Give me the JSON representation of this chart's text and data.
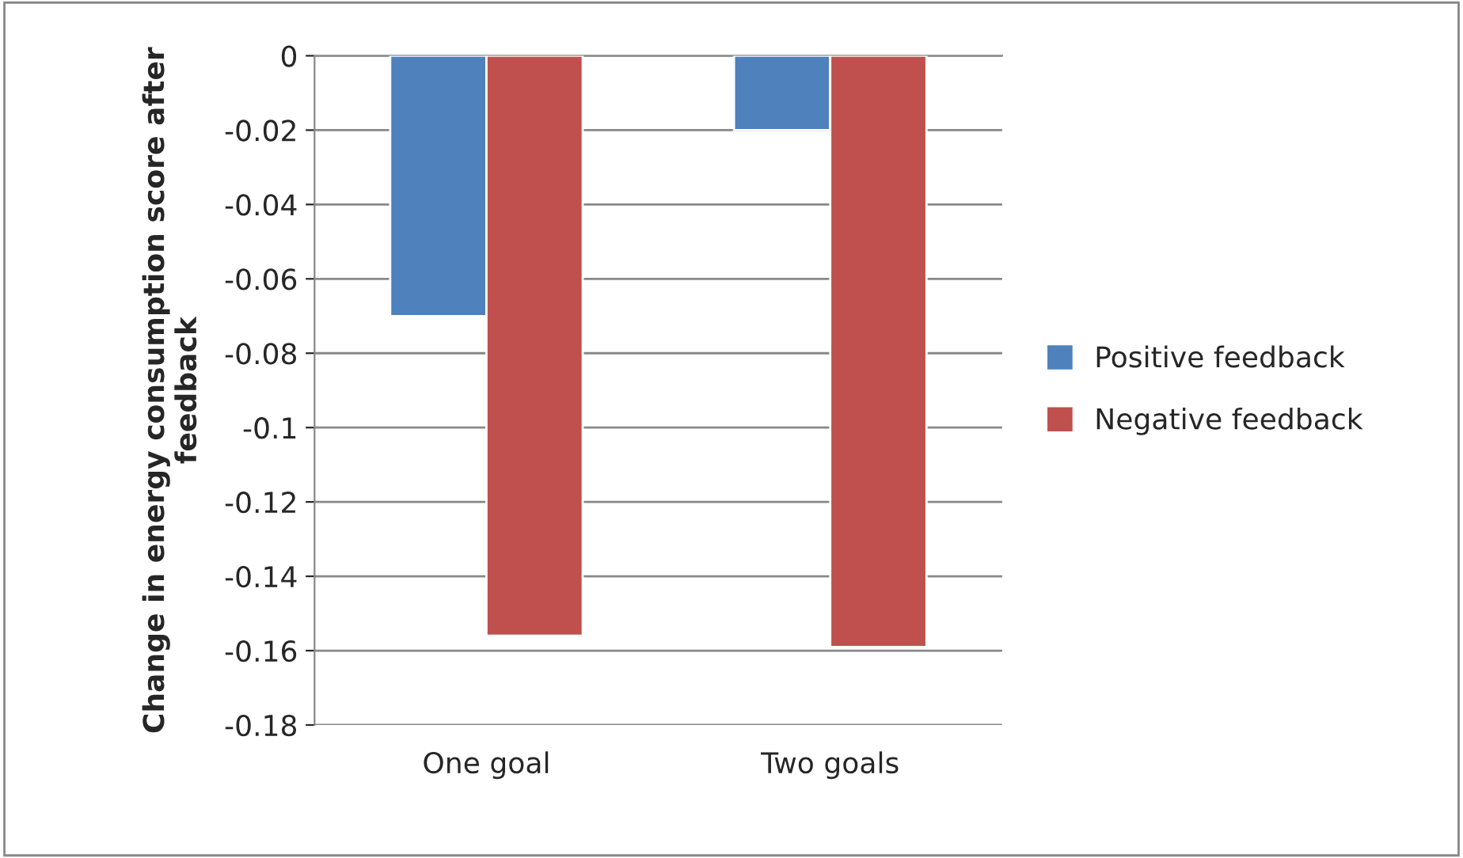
{
  "chart_data": {
    "type": "bar",
    "ylabel": "Change in energy consumption score after feedback",
    "categories": [
      "One goal",
      "Two goals"
    ],
    "series": [
      {
        "name": "Positive feedback",
        "color": "#4f81bd",
        "values": [
          -0.07,
          -0.02
        ]
      },
      {
        "name": "Negative feedback",
        "color": "#c0504d",
        "values": [
          -0.156,
          -0.159
        ]
      }
    ],
    "ylim": [
      -0.18,
      0
    ],
    "yticks": [
      0,
      -0.02,
      -0.04,
      -0.06,
      -0.08,
      -0.1,
      -0.12,
      -0.14,
      -0.16,
      -0.18
    ],
    "grid": "y",
    "legend": "right"
  }
}
